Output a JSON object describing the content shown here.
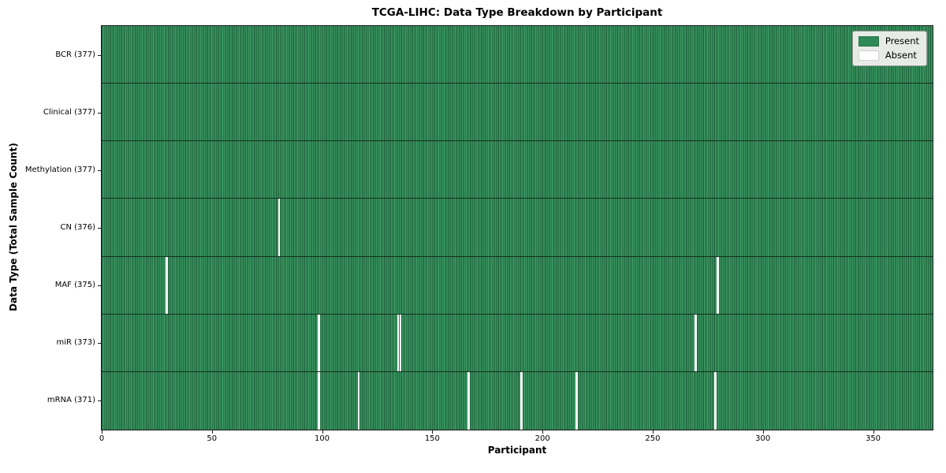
{
  "title": "TCGA-LIHC: Data Type Breakdown by Participant",
  "colors": {
    "present": "#38935f",
    "present_stripe_line": "#1d5c39",
    "absent": "#ffffff",
    "row_separator": "#142e1e",
    "spine": "#1a1a1a",
    "legend_background": "#e7ebe6",
    "legend_border": "#9a9a9a",
    "legend_present_swatch": "#2e8b57",
    "legend_absent_swatch": "#ffffff"
  },
  "chart_data": {
    "type": "heatmap",
    "title": "TCGA-LIHC: Data Type Breakdown by Participant",
    "xlabel": "Participant",
    "ylabel": "Data Type (Total Sample Count)",
    "xlim": [
      0,
      377
    ],
    "x_ticks": [
      0,
      50,
      100,
      150,
      200,
      250,
      300,
      350
    ],
    "n_participants": 377,
    "value_encoding": {
      "present": 1,
      "absent": 0
    },
    "rows": [
      {
        "label": "BCR (377)",
        "data_type": "BCR",
        "total": 377,
        "absent_participants": []
      },
      {
        "label": "Clinical (377)",
        "data_type": "Clinical",
        "total": 377,
        "absent_participants": []
      },
      {
        "label": "Methylation (377)",
        "data_type": "Methylation",
        "total": 377,
        "absent_participants": []
      },
      {
        "label": "CN (376)",
        "data_type": "CN",
        "total": 376,
        "absent_participants": [
          80
        ]
      },
      {
        "label": "MAF (375)",
        "data_type": "MAF",
        "total": 375,
        "absent_participants": [
          29,
          279
        ]
      },
      {
        "label": "miR (373)",
        "data_type": "miR",
        "total": 373,
        "absent_participants": [
          98,
          134,
          135,
          269
        ]
      },
      {
        "label": "mRNA (371)",
        "data_type": "mRNA",
        "total": 371,
        "absent_participants": [
          98,
          116,
          166,
          190,
          215,
          278
        ]
      }
    ],
    "legend": [
      {
        "label": "Present",
        "color": "#2e8b57"
      },
      {
        "label": "Absent",
        "color": "#ffffff"
      }
    ],
    "legend_position": "upper right",
    "grid": false
  }
}
